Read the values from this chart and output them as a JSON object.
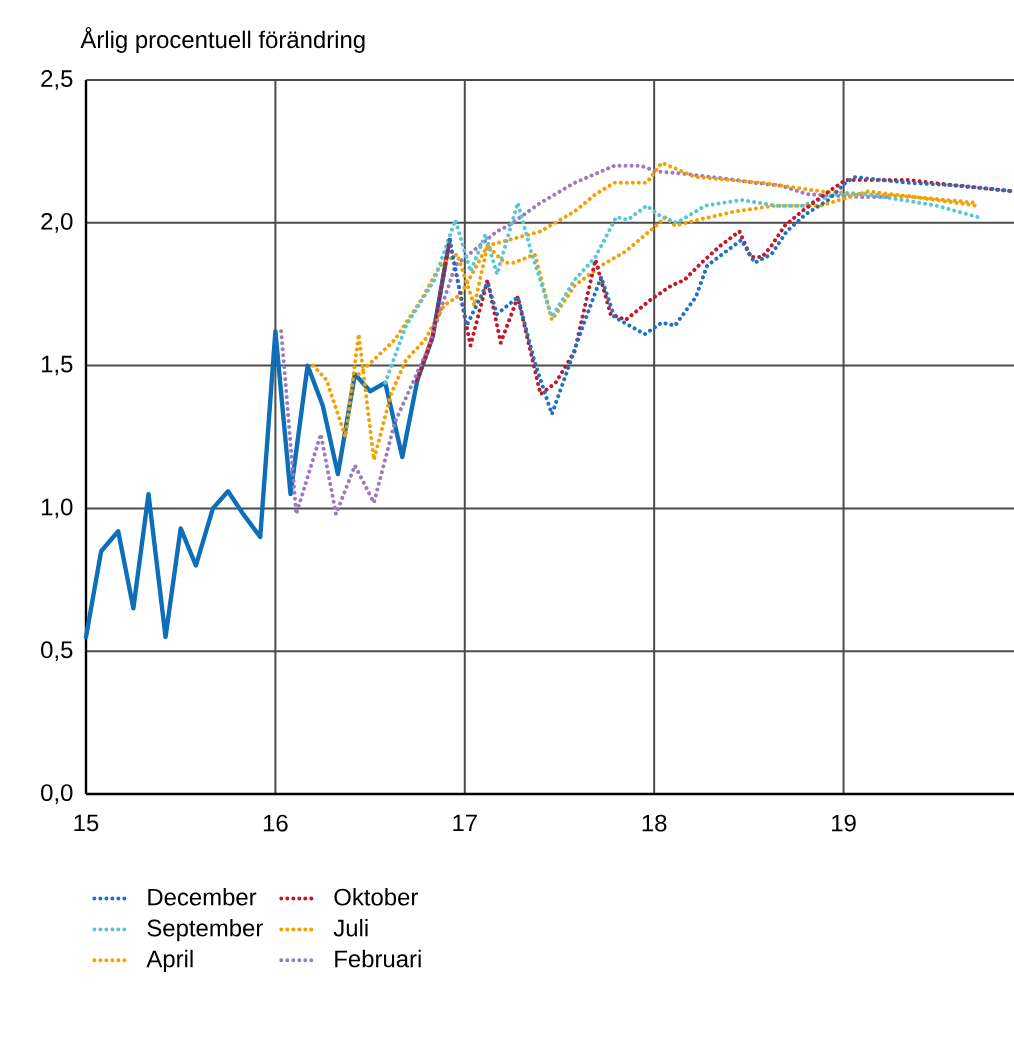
{
  "chart_data": {
    "type": "line",
    "subtitle": "Årlig procentuell förändring",
    "xlim": [
      15,
      19.9
    ],
    "xticks": [
      15,
      16,
      17,
      18,
      19
    ],
    "ylim": [
      0,
      2.5
    ],
    "yticks": [
      {
        "value": 0,
        "label": "0,0"
      },
      {
        "value": 0.5,
        "label": "0,5"
      },
      {
        "value": 1,
        "label": "1,0"
      },
      {
        "value": 1.5,
        "label": "1,5"
      },
      {
        "value": 2,
        "label": "2,0"
      },
      {
        "value": 2.5,
        "label": "2,5"
      }
    ],
    "grid": true,
    "legend": "bottom",
    "series": [
      {
        "color": "#0e6eb8",
        "line_style": "solid",
        "x": [
          15.0,
          15.08,
          15.17,
          15.25,
          15.33,
          15.42,
          15.5,
          15.58,
          15.67,
          15.75,
          15.83,
          15.92,
          16.0,
          16.08,
          16.17,
          16.25,
          16.33,
          16.42,
          16.5,
          16.58,
          16.67,
          16.75,
          16.83,
          16.92
        ],
        "values": [
          0.55,
          0.85,
          0.92,
          0.65,
          1.05,
          0.55,
          0.93,
          0.8,
          1.0,
          1.06,
          0.98,
          0.9,
          1.62,
          1.05,
          1.5,
          1.36,
          1.12,
          1.47,
          1.41,
          1.44,
          1.18,
          1.45,
          1.6,
          1.94
        ]
      },
      {
        "name": "Februari",
        "color": "#9b7bc0",
        "line_style": "dotted",
        "x": [
          16.03,
          16.05,
          16.11,
          16.24,
          16.32,
          16.42,
          16.52,
          16.63,
          16.8,
          16.95,
          17.17,
          17.23,
          17.4,
          17.58,
          17.79,
          17.93,
          18.01,
          18.18,
          18.43,
          18.53,
          18.67,
          18.81,
          19.1,
          19.23
        ],
        "values": [
          1.62,
          1.47,
          0.98,
          1.26,
          0.98,
          1.15,
          1.02,
          1.3,
          1.55,
          1.85,
          1.97,
          1.99,
          2.07,
          2.14,
          2.2,
          2.2,
          2.18,
          2.17,
          2.15,
          2.14,
          2.13,
          2.1,
          2.09,
          2.09
        ]
      },
      {
        "name": "April",
        "color": "#f5a000",
        "line_style": "dotted",
        "x": [
          16.2,
          16.27,
          16.37,
          16.44,
          16.52,
          16.61,
          16.69,
          16.79,
          16.89,
          16.98,
          17.12,
          17.4,
          17.58,
          17.69,
          17.79,
          17.96,
          18.04,
          18.22,
          18.57,
          18.88,
          19.13,
          19.38,
          19.7
        ],
        "values": [
          1.5,
          1.45,
          1.25,
          1.61,
          1.17,
          1.4,
          1.52,
          1.59,
          1.71,
          1.75,
          1.92,
          1.97,
          2.04,
          2.1,
          2.14,
          2.14,
          2.21,
          2.16,
          2.14,
          2.11,
          2.1,
          2.09,
          2.07
        ]
      },
      {
        "name": "Juli",
        "color": "#f5a000",
        "line_style": "dotted",
        "x": [
          16.44,
          16.63,
          16.77,
          16.87,
          16.96,
          17.05,
          17.12,
          17.21,
          17.26,
          17.37,
          17.46,
          17.58,
          17.72,
          17.85,
          18.01,
          18.06,
          18.11,
          18.23,
          18.43,
          18.64,
          18.88,
          19.13,
          19.38,
          19.7
        ],
        "values": [
          1.47,
          1.59,
          1.73,
          1.85,
          1.89,
          1.71,
          1.92,
          1.86,
          1.86,
          1.89,
          1.66,
          1.78,
          1.85,
          1.9,
          1.99,
          2.02,
          1.99,
          2.01,
          2.04,
          2.06,
          2.06,
          2.11,
          2.09,
          2.06
        ]
      },
      {
        "name": "September",
        "color": "#5bc4d6",
        "line_style": "dotted",
        "x": [
          16.58,
          16.69,
          16.84,
          16.95,
          17.03,
          17.11,
          17.17,
          17.28,
          17.35,
          17.46,
          17.58,
          17.69,
          17.8,
          17.86,
          17.96,
          18.04,
          18.12,
          18.27,
          18.46,
          18.64,
          18.78,
          18.96,
          19.12,
          19.31,
          19.49,
          19.71
        ],
        "values": [
          1.44,
          1.64,
          1.8,
          2.01,
          1.83,
          1.96,
          1.82,
          2.07,
          1.9,
          1.67,
          1.8,
          1.88,
          2.02,
          2.01,
          2.06,
          2.02,
          2.0,
          2.06,
          2.08,
          2.06,
          2.06,
          2.1,
          2.1,
          2.08,
          2.06,
          2.02
        ]
      },
      {
        "name": "Oktober",
        "color": "#c0182a",
        "line_style": "dotted",
        "x": [
          16.75,
          16.83,
          16.92,
          17.03,
          17.12,
          17.19,
          17.28,
          17.4,
          17.48,
          17.58,
          17.69,
          17.77,
          17.85,
          17.98,
          18.09,
          18.16,
          18.25,
          18.35,
          18.45,
          18.51,
          18.57,
          18.62,
          18.69,
          18.78,
          18.88,
          19.01,
          19.34,
          19.6,
          19.9
        ],
        "values": [
          1.45,
          1.6,
          1.94,
          1.57,
          1.8,
          1.58,
          1.74,
          1.4,
          1.44,
          1.55,
          1.87,
          1.68,
          1.66,
          1.73,
          1.78,
          1.8,
          1.86,
          1.92,
          1.97,
          1.88,
          1.88,
          1.92,
          1.99,
          2.04,
          2.09,
          2.15,
          2.15,
          2.13,
          2.11
        ]
      },
      {
        "name": "December",
        "color": "#1f72c0",
        "line_style": "dotted",
        "x": [
          16.92,
          17.01,
          17.12,
          17.17,
          17.28,
          17.37,
          17.46,
          17.54,
          17.63,
          17.72,
          17.79,
          17.95,
          18.04,
          18.11,
          18.22,
          18.28,
          18.46,
          18.53,
          18.62,
          18.7,
          18.8,
          18.92,
          19.01,
          19.06,
          19.34,
          19.62,
          19.9
        ],
        "values": [
          1.94,
          1.64,
          1.79,
          1.68,
          1.74,
          1.51,
          1.33,
          1.48,
          1.65,
          1.81,
          1.67,
          1.61,
          1.65,
          1.64,
          1.74,
          1.85,
          1.94,
          1.86,
          1.89,
          1.97,
          2.03,
          2.08,
          2.14,
          2.16,
          2.14,
          2.13,
          2.11
        ]
      }
    ]
  }
}
